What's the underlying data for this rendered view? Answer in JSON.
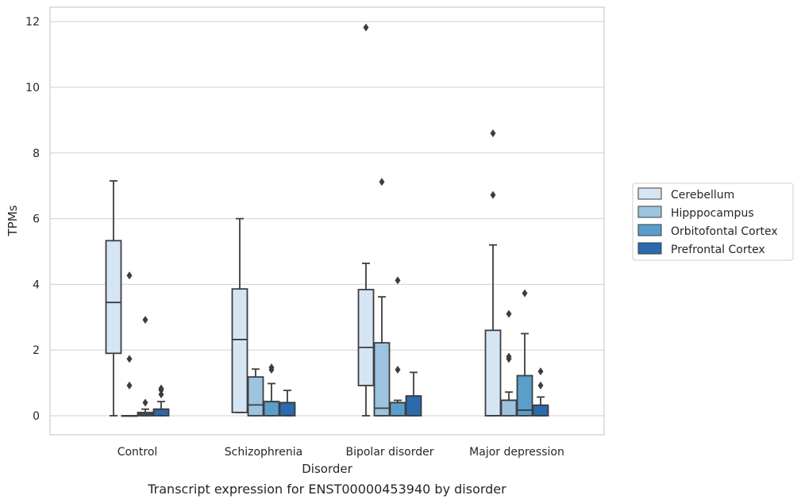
{
  "chart_data": {
    "type": "box",
    "caption": "Transcript expression for ENST00000453940 by disorder",
    "xlabel": "Disorder",
    "ylabel": "TPMs",
    "ylim": [
      -0.58,
      12.4
    ],
    "yticks": [
      0,
      2,
      4,
      6,
      8,
      10,
      12
    ],
    "grid": "y",
    "legend_position": "right",
    "categories": [
      "Control",
      "Schizophrenia",
      "Bipolar disorder",
      "Major depression"
    ],
    "series": [
      {
        "name": "Cerebellum",
        "color": "#d6e5f4",
        "boxes": [
          {
            "min": 0,
            "q1": 1.9,
            "median": 3.45,
            "q3": 5.33,
            "max": 7.15,
            "outliers": []
          },
          {
            "min": 0.1,
            "q1": 0.1,
            "median": 2.32,
            "q3": 3.86,
            "max": 6.0,
            "outliers": []
          },
          {
            "min": 0,
            "q1": 0.92,
            "median": 2.08,
            "q3": 3.84,
            "max": 4.64,
            "outliers": [
              11.82
            ]
          },
          {
            "min": 0,
            "q1": 0,
            "median": 0,
            "q3": 2.6,
            "max": 5.2,
            "outliers": [
              6.72,
              8.6
            ]
          }
        ]
      },
      {
        "name": "Hipppocampus",
        "color": "#9dc4de",
        "boxes": [
          {
            "min": 0,
            "q1": 0,
            "median": 0,
            "q3": 0,
            "max": 0,
            "outliers": [
              0.92,
              1.73,
              4.27
            ]
          },
          {
            "min": 0,
            "q1": 0,
            "median": 0.33,
            "q3": 1.18,
            "max": 1.42,
            "outliers": []
          },
          {
            "min": 0,
            "q1": 0,
            "median": 0.23,
            "q3": 2.22,
            "max": 3.62,
            "outliers": [
              7.12
            ]
          },
          {
            "min": 0,
            "q1": 0,
            "median": 0.47,
            "q3": 0.47,
            "max": 0.72,
            "outliers": [
              1.73,
              1.8,
              3.1
            ]
          }
        ]
      },
      {
        "name": "Orbitofontal Cortex",
        "color": "#5a9fcb",
        "boxes": [
          {
            "min": 0,
            "q1": 0,
            "median": 0.05,
            "q3": 0.1,
            "max": 0.2,
            "outliers": [
              0.4,
              2.92
            ]
          },
          {
            "min": 0,
            "q1": 0,
            "median": 0.43,
            "q3": 0.43,
            "max": 0.98,
            "outliers": [
              1.4,
              1.47
            ]
          },
          {
            "min": 0,
            "q1": 0,
            "median": 0.4,
            "q3": 0.4,
            "max": 0.47,
            "outliers": [
              1.4,
              4.12
            ]
          },
          {
            "min": 0,
            "q1": 0,
            "median": 0.17,
            "q3": 1.22,
            "max": 2.5,
            "outliers": [
              3.73
            ]
          }
        ]
      },
      {
        "name": "Prefrontal Cortex",
        "color": "#2a6aad",
        "boxes": [
          {
            "min": 0,
            "q1": 0,
            "median": 0.2,
            "q3": 0.2,
            "max": 0.43,
            "outliers": [
              0.65,
              0.78,
              0.83
            ]
          },
          {
            "min": 0,
            "q1": 0,
            "median": 0.4,
            "q3": 0.4,
            "max": 0.77,
            "outliers": []
          },
          {
            "min": 0,
            "q1": 0,
            "median": 0.6,
            "q3": 0.6,
            "max": 1.32,
            "outliers": []
          },
          {
            "min": 0,
            "q1": 0,
            "median": 0.32,
            "q3": 0.32,
            "max": 0.57,
            "outliers": [
              0.92,
              1.35
            ]
          }
        ]
      }
    ]
  }
}
